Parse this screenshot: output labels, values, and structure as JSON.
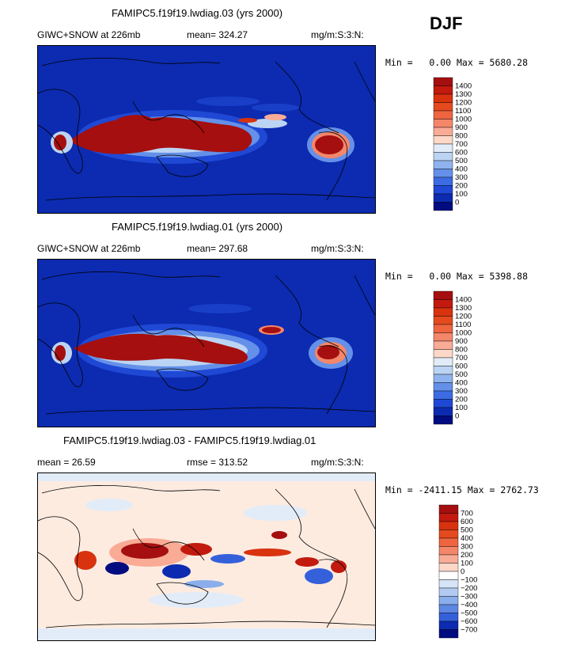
{
  "season": "DJF",
  "panels": [
    {
      "title": "FAMIPC5.f19f19.lwdiag.03 (yrs 2000)",
      "variable": "GIWC+SNOW at 226mb",
      "mean": "mean= 324.27",
      "units": "mg/m:S:3:N:",
      "minmax": "Min =   0.00 Max = 5680.28",
      "colorbar": {
        "labels": [
          "1400",
          "1300",
          "1200",
          "1100",
          "1000",
          "900",
          "800",
          "700",
          "600",
          "500",
          "400",
          "300",
          "200",
          "100",
          "0"
        ],
        "colors": [
          "#a50f0f",
          "#c21a0e",
          "#d8320f",
          "#e54a1f",
          "#ee6540",
          "#f4866a",
          "#f9ab96",
          "#fdd8c9",
          "#e1ecf8",
          "#bcd4f3",
          "#8fb3ee",
          "#6490e9",
          "#3c6be4",
          "#1f48d4",
          "#0c2bb0",
          "#000c80"
        ]
      }
    },
    {
      "title": "FAMIPC5.f19f19.lwdiag.01 (yrs 2000)",
      "variable": "GIWC+SNOW at 226mb",
      "mean": "mean= 297.68",
      "units": "mg/m:S:3:N:",
      "minmax": "Min =   0.00 Max = 5398.88",
      "colorbar": {
        "labels": [
          "1400",
          "1300",
          "1200",
          "1100",
          "1000",
          "900",
          "800",
          "700",
          "600",
          "500",
          "400",
          "300",
          "200",
          "100",
          "0"
        ],
        "colors": [
          "#a50f0f",
          "#c21a0e",
          "#d8320f",
          "#e54a1f",
          "#ee6540",
          "#f4866a",
          "#f9ab96",
          "#fdd8c9",
          "#e1ecf8",
          "#bcd4f3",
          "#8fb3ee",
          "#6490e9",
          "#3c6be4",
          "#1f48d4",
          "#0c2bb0",
          "#000c80"
        ]
      }
    },
    {
      "title": "FAMIPC5.f19f19.lwdiag.03 - FAMIPC5.f19f19.lwdiag.01",
      "variable": "mean =   26.59",
      "mean": "rmse = 313.52",
      "units": "mg/m:S:3:N:",
      "minmax": "Min = -2411.15 Max = 2762.73",
      "colorbar": {
        "labels": [
          "700",
          "600",
          "500",
          "400",
          "300",
          "200",
          "100",
          "0",
          "−100",
          "−200",
          "−300",
          "−400",
          "−500",
          "−600",
          "−700"
        ],
        "colors": [
          "#a50f0f",
          "#c21a0e",
          "#d8320f",
          "#e54a1f",
          "#ee6540",
          "#f4866a",
          "#f9ab96",
          "#fdd8c9",
          "#ffffff",
          "#d6e4f7",
          "#b2caf1",
          "#8aaeeb",
          "#5e87e4",
          "#3460da",
          "#0c2bb0",
          "#000c80"
        ]
      }
    }
  ]
}
